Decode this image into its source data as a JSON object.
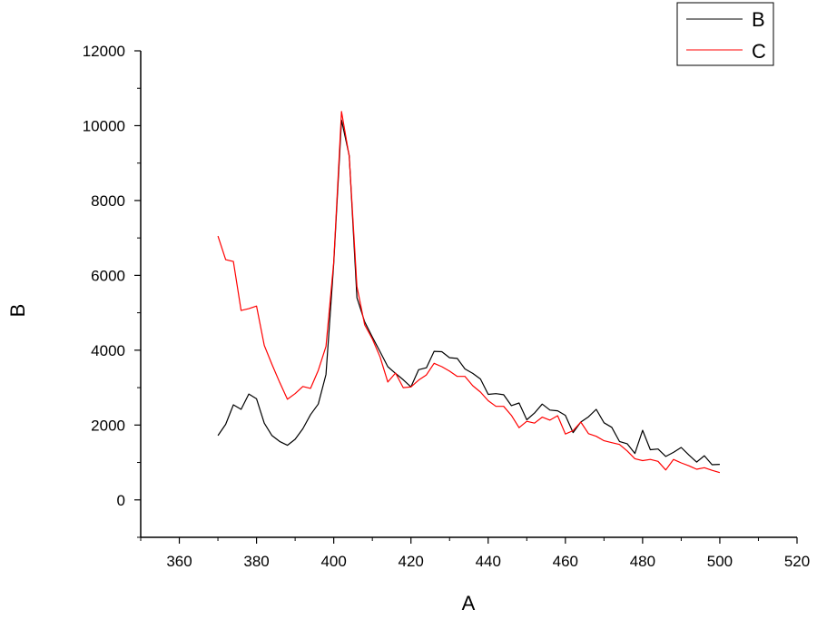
{
  "chart_data": {
    "type": "line",
    "xlabel": "A",
    "ylabel": "B",
    "xlim": [
      350,
      520
    ],
    "ylim": [
      -1000,
      12000
    ],
    "x_ticks": [
      360,
      380,
      400,
      420,
      440,
      460,
      480,
      500,
      520
    ],
    "y_ticks": [
      0,
      2000,
      4000,
      6000,
      8000,
      10000,
      12000
    ],
    "legend_position": "top-right",
    "grid": false,
    "series": [
      {
        "name": "B",
        "color": "#000000",
        "x": [
          370,
          372,
          374,
          376,
          378,
          380,
          382,
          384,
          386,
          388,
          390,
          392,
          394,
          396,
          398,
          400,
          402,
          404,
          406,
          408,
          410,
          412,
          414,
          416,
          418,
          420,
          422,
          424,
          426,
          428,
          430,
          432,
          434,
          436,
          438,
          440,
          442,
          444,
          446,
          448,
          450,
          452,
          454,
          456,
          458,
          460,
          462,
          464,
          466,
          468,
          470,
          472,
          474,
          476,
          478,
          480,
          482,
          484,
          486,
          488,
          490,
          492,
          494,
          496,
          498,
          500
        ],
        "values": [
          1720,
          2020,
          2540,
          2420,
          2830,
          2700,
          2050,
          1720,
          1560,
          1460,
          1620,
          1900,
          2280,
          2560,
          3350,
          6300,
          10150,
          9200,
          5400,
          4760,
          4350,
          3960,
          3560,
          3380,
          3210,
          3020,
          3480,
          3530,
          3970,
          3960,
          3800,
          3780,
          3500,
          3380,
          3230,
          2820,
          2840,
          2810,
          2520,
          2590,
          2140,
          2320,
          2560,
          2400,
          2380,
          2260,
          1800,
          2080,
          2220,
          2420,
          2060,
          1940,
          1560,
          1500,
          1240,
          1860,
          1340,
          1360,
          1160,
          1270,
          1400,
          1200,
          1010,
          1180,
          940,
          950
        ]
      },
      {
        "name": "C",
        "color": "#ff0000",
        "x": [
          370,
          372,
          374,
          376,
          378,
          380,
          382,
          384,
          386,
          388,
          390,
          392,
          394,
          396,
          398,
          400,
          402,
          404,
          406,
          408,
          410,
          412,
          414,
          416,
          418,
          420,
          422,
          424,
          426,
          428,
          430,
          432,
          434,
          436,
          438,
          440,
          442,
          444,
          446,
          448,
          450,
          452,
          454,
          456,
          458,
          460,
          462,
          464,
          466,
          468,
          470,
          472,
          474,
          476,
          478,
          480,
          482,
          484,
          486,
          488,
          490,
          492,
          494,
          496,
          498,
          500
        ],
        "values": [
          7050,
          6420,
          6370,
          5060,
          5110,
          5180,
          4130,
          3620,
          3140,
          2690,
          2840,
          3030,
          2980,
          3460,
          4100,
          6350,
          10380,
          9180,
          5700,
          4680,
          4300,
          3820,
          3150,
          3390,
          3000,
          3020,
          3200,
          3340,
          3650,
          3560,
          3440,
          3300,
          3300,
          3050,
          2880,
          2650,
          2500,
          2500,
          2260,
          1930,
          2100,
          2050,
          2210,
          2130,
          2250,
          1760,
          1850,
          2080,
          1770,
          1700,
          1580,
          1530,
          1480,
          1310,
          1100,
          1050,
          1080,
          1030,
          800,
          1080,
          990,
          910,
          820,
          860,
          790,
          730
        ]
      }
    ]
  }
}
